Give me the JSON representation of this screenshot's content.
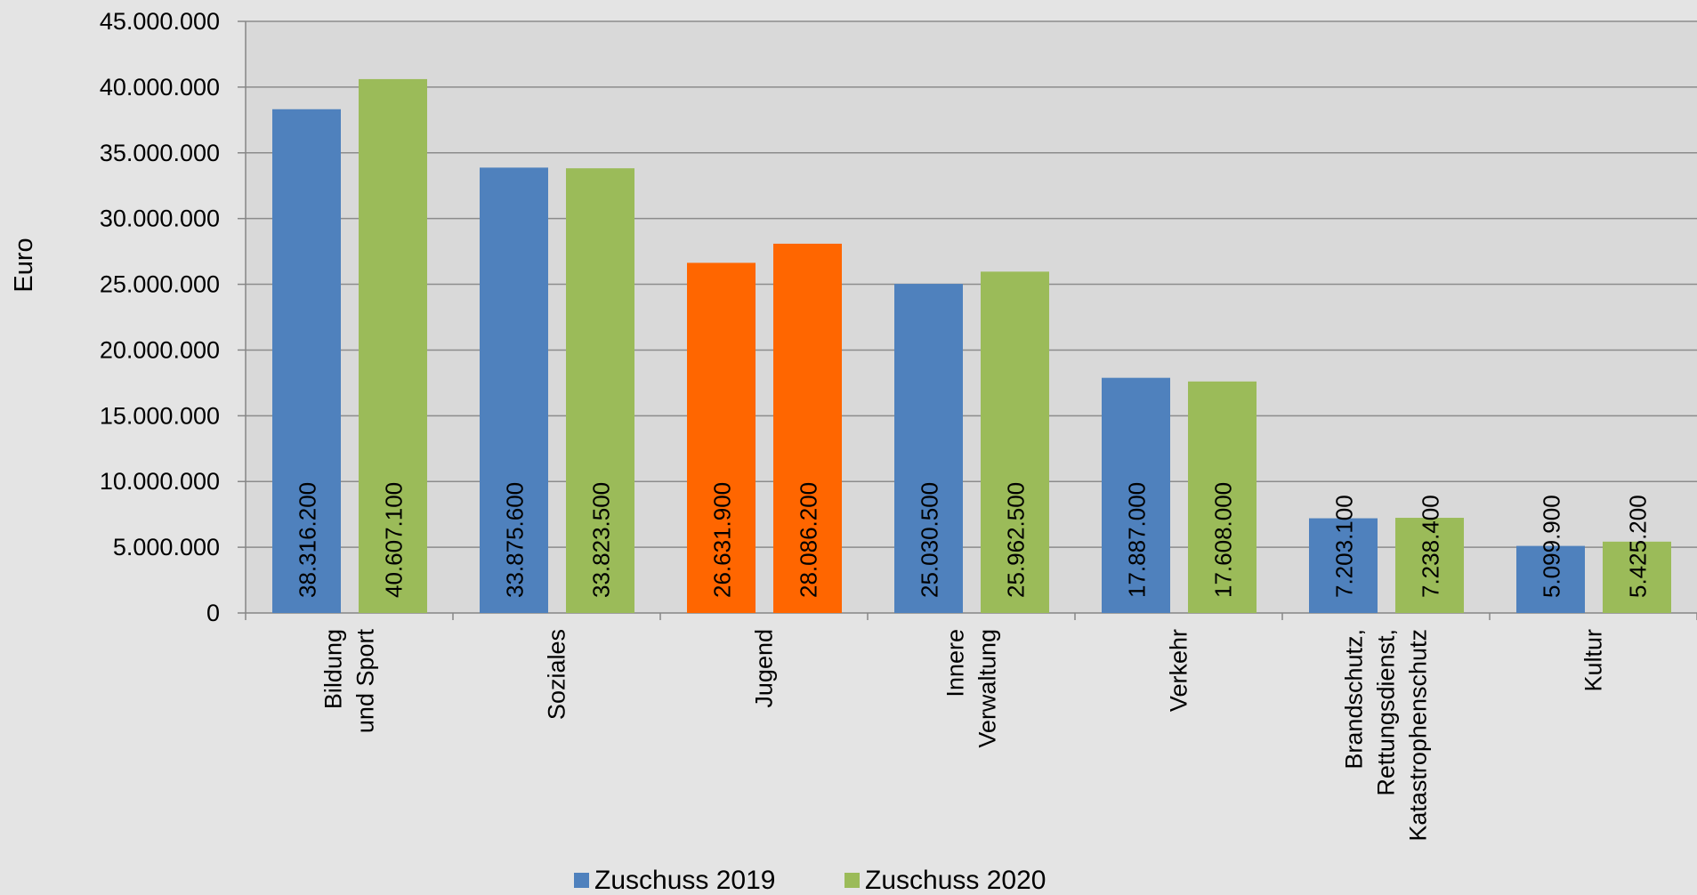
{
  "chart_data": {
    "type": "bar",
    "ylabel": "Euro",
    "ylim": [
      0,
      45000000
    ],
    "ytick_step": 5000000,
    "grid": true,
    "legend_position": "bottom",
    "y_tick_labels": [
      "0",
      "5.000.000",
      "10.000.000",
      "15.000.000",
      "20.000.000",
      "25.000.000",
      "30.000.000",
      "35.000.000",
      "40.000.000",
      "45.000.000"
    ],
    "categories": [
      {
        "lines": [
          "Bildung",
          "und Sport"
        ]
      },
      {
        "lines": [
          "Soziales"
        ]
      },
      {
        "lines": [
          "Jugend"
        ]
      },
      {
        "lines": [
          "Innere",
          "Verwaltung"
        ]
      },
      {
        "lines": [
          "Verkehr"
        ]
      },
      {
        "lines": [
          "Brandschutz,",
          "Rettungsdienst,",
          "Katastrophenschutz"
        ]
      },
      {
        "lines": [
          "Kultur"
        ]
      }
    ],
    "series": [
      {
        "name": "Zuschuss 2019",
        "color": "#4f81bd",
        "values": [
          38316200,
          33875600,
          26631900,
          25030500,
          17887000,
          7203100,
          5099900
        ],
        "labels": [
          "38.316.200",
          "33.875.600",
          "26.631.900",
          "25.030.500",
          "17.887.000",
          "7.203.100",
          "5.099.900"
        ]
      },
      {
        "name": "Zuschuss 2020",
        "color": "#9bbb59",
        "values": [
          40607100,
          33823500,
          28086200,
          25962500,
          17608000,
          7238400,
          5425200
        ],
        "labels": [
          "40.607.100",
          "33.823.500",
          "28.086.200",
          "25.962.500",
          "17.608.000",
          "7.238.400",
          "5.425.200"
        ]
      }
    ],
    "highlight": {
      "category_index": 2,
      "color": "#ff6600"
    }
  },
  "colors": {
    "plot_background": "#d9d9d9",
    "grid": "#8c8c8c",
    "axis": "#868686"
  }
}
